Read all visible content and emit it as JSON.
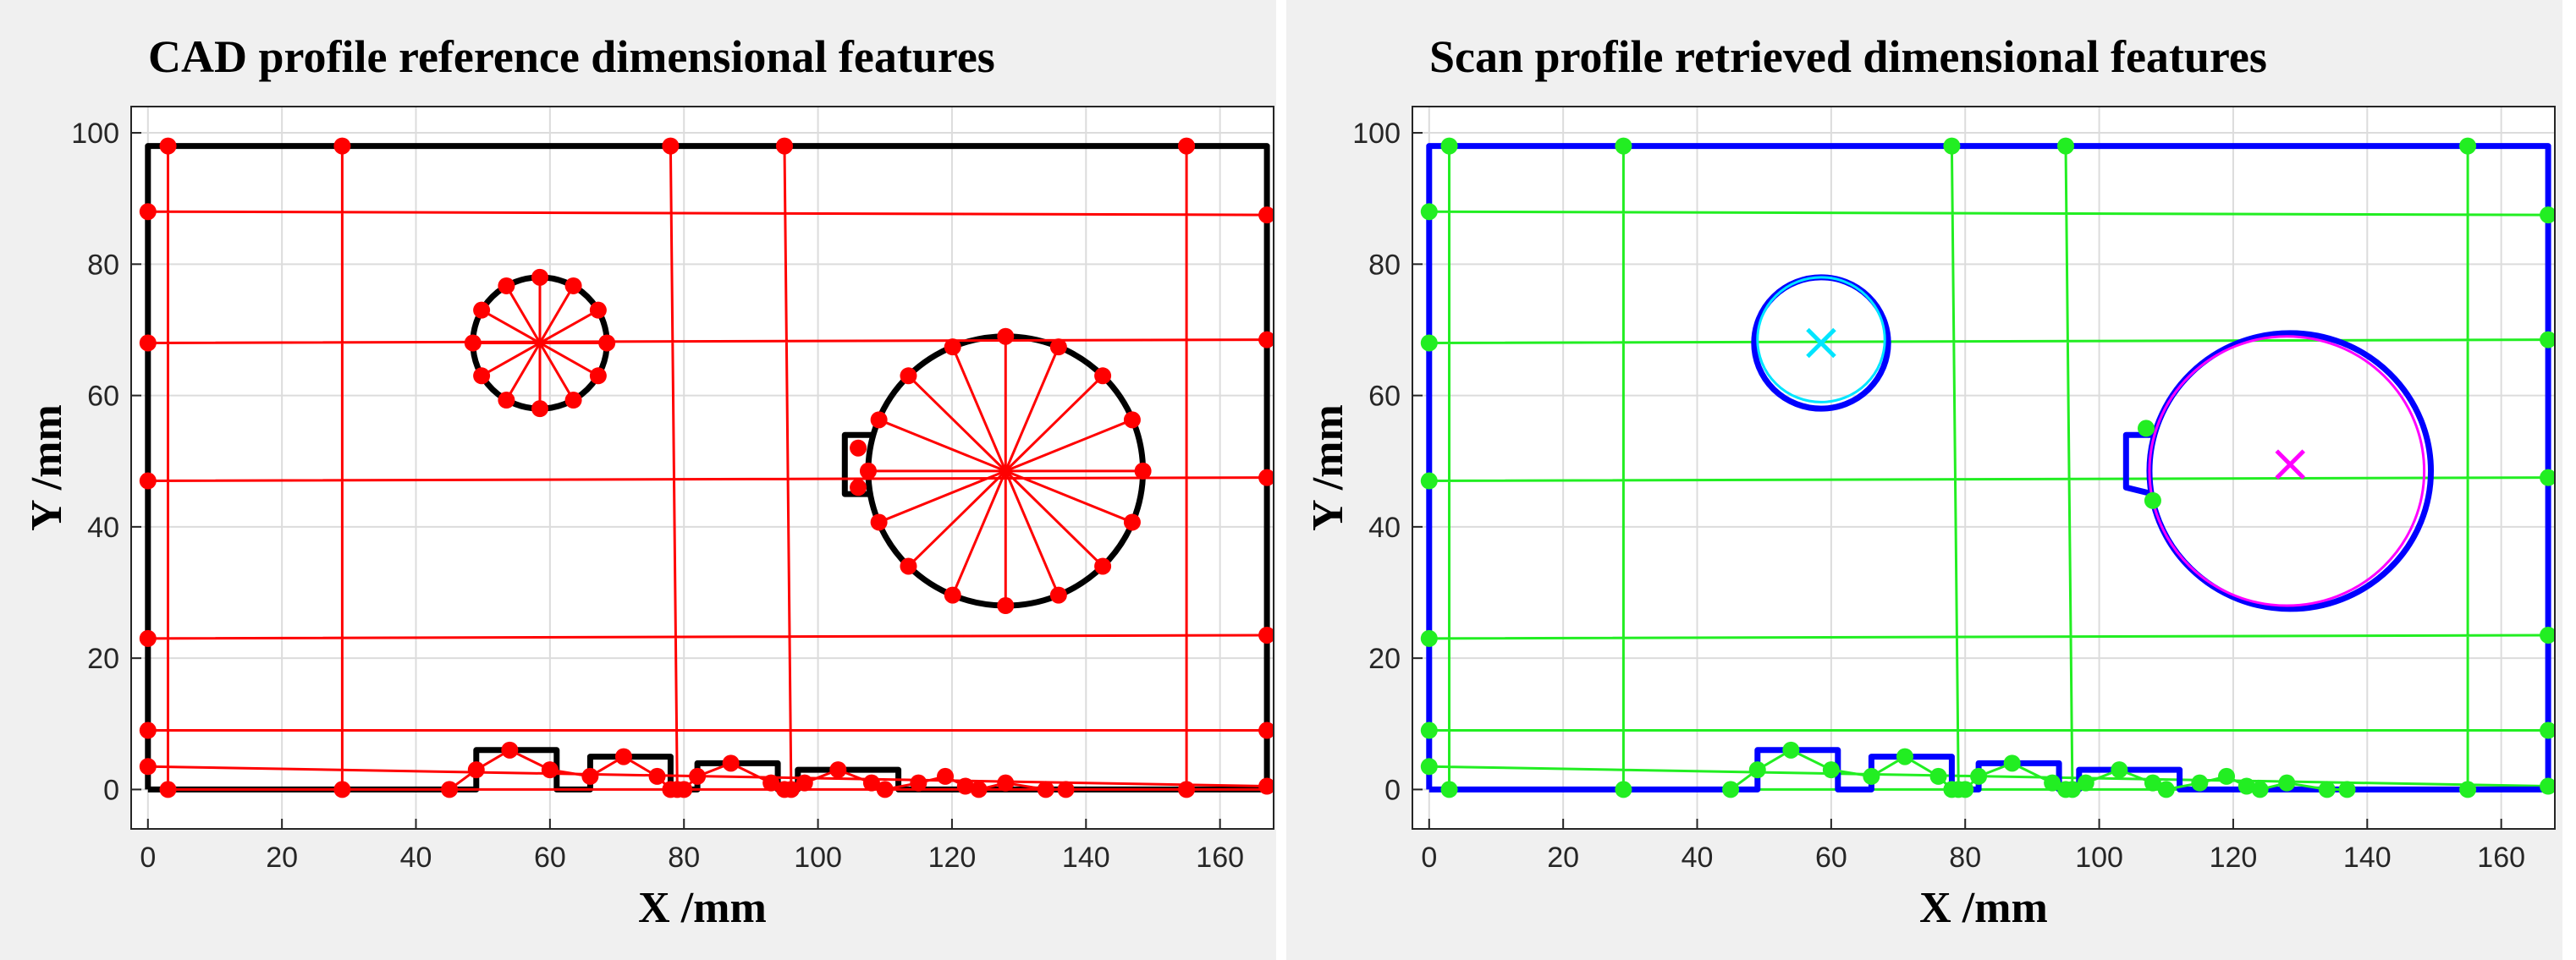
{
  "chart_data": [
    {
      "type": "line",
      "title": "CAD profile reference dimensional features",
      "xlabel": "X /mm",
      "ylabel": "Y /mm",
      "xlim": [
        -2.5,
        168
      ],
      "ylim": [
        -6,
        104
      ],
      "xticks": [
        0,
        20,
        40,
        60,
        80,
        100,
        120,
        140,
        160
      ],
      "yticks": [
        0,
        20,
        40,
        60,
        80,
        100
      ],
      "grid": true,
      "series": [
        {
          "mode": "lines",
          "weight": "heavy",
          "color": "#000000",
          "x": [
            0,
            0,
            167,
            167,
            112,
            112,
            97,
            97,
            94,
            94,
            82,
            82,
            78,
            78,
            66,
            66,
            61,
            61,
            49,
            49,
            0
          ],
          "y": [
            0,
            98,
            98,
            0,
            0,
            3,
            3,
            0,
            0,
            4,
            4,
            0,
            0,
            5,
            5,
            0,
            0,
            6,
            6,
            0,
            0
          ]
        },
        {
          "mode": "circle",
          "weight": "heavy",
          "color": "#000000",
          "x": [
            58.5
          ],
          "y": [
            68
          ],
          "r": [
            10
          ]
        },
        {
          "mode": "circle",
          "weight": "heavy",
          "color": "#000000",
          "x": [
            128
          ],
          "y": [
            48.5
          ],
          "r": [
            20.5
          ]
        },
        {
          "mode": "lines",
          "weight": "heavy",
          "color": "#000000",
          "x": [
            108,
            104,
            104,
            108
          ],
          "y": [
            54,
            54,
            45,
            45
          ]
        },
        {
          "mode": "lines",
          "weight": "light",
          "color": "#ff0000",
          "x": [
            0,
            167,
            null,
            0,
            167,
            null,
            0,
            167,
            null,
            0,
            167,
            null,
            0,
            167,
            null,
            0,
            167,
            null,
            3,
            3,
            null,
            29,
            29,
            null,
            78,
            79,
            null,
            95,
            96,
            null,
            155,
            155,
            null,
            3,
            167
          ],
          "y": [
            88,
            87.5,
            null,
            68,
            68.5,
            null,
            47,
            47.5,
            null,
            23,
            23.5,
            null,
            9,
            9,
            null,
            3.5,
            0.5,
            null,
            0,
            98,
            null,
            0,
            98,
            null,
            98,
            0,
            null,
            98,
            0,
            null,
            0,
            98,
            null,
            0,
            0
          ]
        },
        {
          "mode": "spokes",
          "weight": "light",
          "color": "#ff0000",
          "x": [
            58.5,
            68.5,
            67.2,
            63.5,
            58.5,
            53.5,
            49.8,
            48.5,
            49.8,
            53.5,
            58.5,
            63.5,
            67.2
          ],
          "y": [
            68,
            68,
            73,
            76.7,
            78,
            76.7,
            73,
            68,
            63,
            59.3,
            58,
            59.3,
            63
          ]
        },
        {
          "mode": "spokes",
          "weight": "light",
          "color": "#ff0000",
          "x": [
            128,
            148.5,
            146.9,
            142.5,
            135.9,
            128,
            120.1,
            113.5,
            109.1,
            107.5,
            109.1,
            113.5,
            120.1,
            128,
            135.9,
            142.5,
            146.9
          ],
          "y": [
            48.5,
            48.5,
            56.3,
            63,
            67.4,
            69,
            67.4,
            63,
            56.3,
            48.5,
            40.7,
            34,
            29.6,
            28,
            29.6,
            34,
            40.7
          ]
        },
        {
          "mode": "lines+markers",
          "weight": "light",
          "color": "#ff0000",
          "x": [
            45,
            49,
            54,
            60,
            66,
            71,
            76,
            78,
            80,
            82,
            87,
            93,
            95,
            98,
            103,
            108,
            110,
            115,
            119,
            122,
            124,
            128,
            134,
            137
          ],
          "y": [
            0,
            3,
            6,
            3,
            2,
            5,
            2,
            0,
            0,
            2,
            4,
            1,
            0,
            1,
            3,
            1,
            0,
            1,
            2,
            0.5,
            0,
            1,
            0,
            0
          ]
        },
        {
          "mode": "markers",
          "weight": "light",
          "color": "#ff0000",
          "x": [
            3,
            29,
            78,
            95,
            155,
            3,
            29,
            79,
            96,
            155,
            0,
            0,
            0,
            0,
            0,
            0,
            167,
            167,
            167,
            167,
            167,
            167,
            106,
            106
          ],
          "y": [
            98,
            98,
            98,
            98,
            98,
            0,
            0,
            0,
            0,
            0,
            88,
            68,
            47,
            23,
            9,
            3.5,
            87.5,
            68.5,
            47.5,
            23.5,
            9,
            0.5,
            52,
            46
          ]
        }
      ]
    },
    {
      "type": "line",
      "title": "Scan profile retrieved dimensional features",
      "xlabel": "X /mm",
      "ylabel": "Y /mm",
      "xlim": [
        -2.5,
        168
      ],
      "ylim": [
        -6,
        104
      ],
      "xticks": [
        0,
        20,
        40,
        60,
        80,
        100,
        120,
        140,
        160
      ],
      "yticks": [
        0,
        20,
        40,
        60,
        80,
        100
      ],
      "grid": true,
      "series": [
        {
          "mode": "lines",
          "weight": "light",
          "color": "#22ee22",
          "x": [
            0,
            167,
            null,
            0,
            167,
            null,
            0,
            167,
            null,
            0,
            167,
            null,
            0,
            167,
            null,
            0,
            167,
            null,
            3,
            3,
            null,
            29,
            29,
            null,
            78,
            79,
            null,
            95,
            96,
            null,
            155,
            155,
            null,
            3,
            167
          ],
          "y": [
            88,
            87.5,
            null,
            68,
            68.5,
            null,
            47,
            47.5,
            null,
            23,
            23.5,
            null,
            9,
            9,
            null,
            3.5,
            0.5,
            null,
            0,
            98,
            null,
            0,
            98,
            null,
            98,
            0,
            null,
            98,
            0,
            null,
            0,
            98,
            null,
            0,
            0
          ]
        },
        {
          "mode": "lines",
          "weight": "heavy",
          "color": "#0000ff",
          "x": [
            0,
            0,
            167,
            167,
            112,
            112,
            97,
            97,
            94,
            94,
            82,
            82,
            78,
            78,
            66,
            66,
            61,
            61,
            49,
            49,
            0
          ],
          "y": [
            0,
            98,
            98,
            0,
            0,
            3,
            3,
            0,
            0,
            4,
            4,
            0,
            0,
            5,
            5,
            0,
            0,
            6,
            6,
            0,
            0
          ]
        },
        {
          "mode": "circle",
          "weight": "heavy",
          "color": "#0000ff",
          "x": [
            58.5
          ],
          "y": [
            68
          ],
          "r": [
            10
          ]
        },
        {
          "mode": "circle",
          "weight": "light",
          "color": "#00e5ff",
          "x": [
            58.5
          ],
          "y": [
            68.5
          ],
          "r": [
            9.5
          ]
        },
        {
          "mode": "circle",
          "weight": "heavy",
          "color": "#0000ff",
          "x": [
            128.5
          ],
          "y": [
            48.5
          ],
          "r": [
            21
          ]
        },
        {
          "mode": "lines",
          "weight": "heavy",
          "color": "#0000ff",
          "x": [
            108,
            104,
            104,
            108
          ],
          "y": [
            54,
            54,
            46,
            45
          ]
        },
        {
          "mode": "circle",
          "weight": "light",
          "color": "#ff00ff",
          "x": [
            128
          ],
          "y": [
            48.5
          ],
          "r": [
            20.5
          ]
        },
        {
          "mode": "lines+markers",
          "weight": "light",
          "color": "#22ee22",
          "x": [
            45,
            49,
            54,
            60,
            66,
            71,
            76,
            78,
            80,
            82,
            87,
            93,
            95,
            98,
            103,
            108,
            110,
            115,
            119,
            122,
            124,
            128,
            134,
            137
          ],
          "y": [
            0,
            3,
            6,
            3,
            2,
            5,
            2,
            0,
            0,
            2,
            4,
            1,
            0,
            1,
            3,
            1,
            0,
            1,
            2,
            0.5,
            0,
            1,
            0,
            0
          ]
        },
        {
          "mode": "markers",
          "weight": "light",
          "color": "#22ee22",
          "x": [
            3,
            29,
            78,
            95,
            155,
            3,
            29,
            79,
            96,
            155,
            0,
            0,
            0,
            0,
            0,
            0,
            167,
            167,
            167,
            167,
            167,
            167,
            107,
            108
          ],
          "y": [
            98,
            98,
            98,
            98,
            98,
            0,
            0,
            0,
            0,
            0,
            88,
            68,
            47,
            23,
            9,
            3.5,
            87.5,
            68.5,
            47.5,
            23.5,
            9,
            0.5,
            55,
            44
          ]
        },
        {
          "mode": "x",
          "weight": "light",
          "color": "#00e5ff",
          "x": [
            58.5
          ],
          "y": [
            68
          ]
        },
        {
          "mode": "x",
          "weight": "light",
          "color": "#ff00ff",
          "x": [
            128.5
          ],
          "y": [
            49.5
          ]
        }
      ]
    }
  ]
}
